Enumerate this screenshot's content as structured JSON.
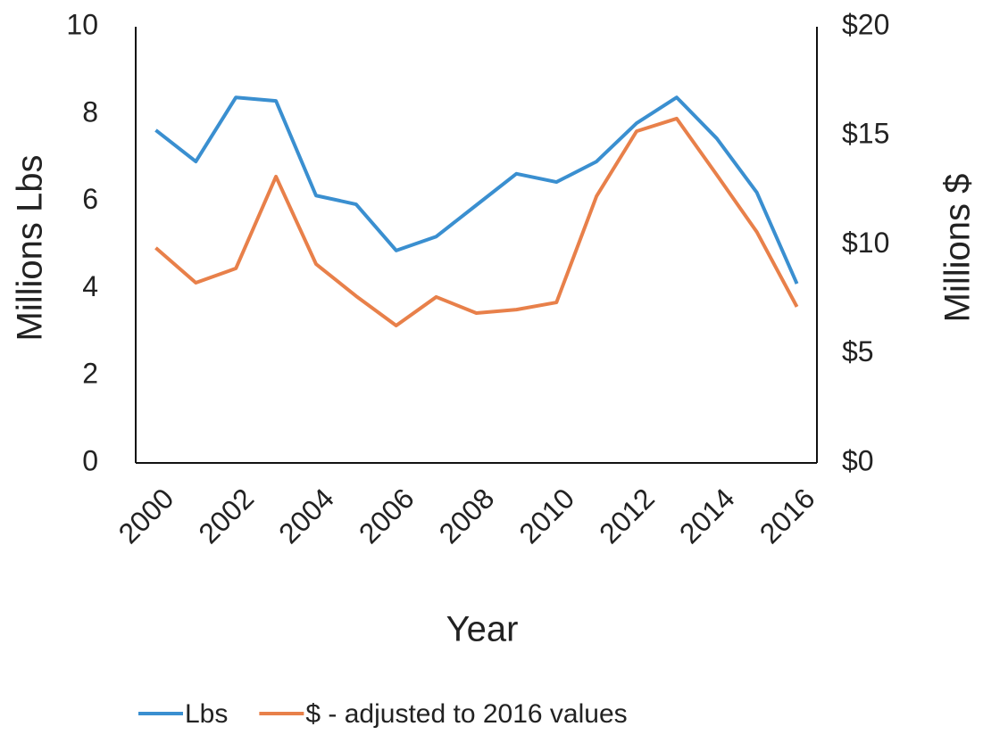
{
  "chart_data": {
    "type": "line",
    "x": [
      2000,
      2001,
      2002,
      2003,
      2004,
      2005,
      2006,
      2007,
      2008,
      2009,
      2010,
      2011,
      2012,
      2013,
      2014,
      2015,
      2016
    ],
    "series": [
      {
        "name": "Lbs",
        "color": "#3a8fd0",
        "values": [
          7.63,
          6.91,
          8.38,
          8.3,
          6.13,
          5.93,
          4.87,
          5.19,
          5.91,
          6.63,
          6.44,
          6.91,
          7.79,
          8.38,
          7.44,
          6.2,
          4.11
        ]
      },
      {
        "name": "$ - adjusted to 2016 values",
        "color": "#e8804a",
        "axis": "y2",
        "values": [
          9.86,
          8.26,
          8.92,
          13.13,
          9.12,
          7.65,
          6.3,
          7.61,
          6.87,
          7.03,
          7.36,
          12.23,
          15.21,
          15.79,
          13.21,
          10.59,
          7.16
        ]
      }
    ],
    "xlabel": "Year",
    "ylabel": "Millions Lbs",
    "y2label": "Millions $",
    "xlim": [
      1999.5,
      2016.5
    ],
    "xticks": [
      2000,
      2002,
      2004,
      2006,
      2008,
      2010,
      2012,
      2014,
      2016
    ],
    "ylim": [
      0,
      10
    ],
    "yticks": [
      0,
      2,
      4,
      6,
      8,
      10
    ],
    "y2lim": [
      0,
      20
    ],
    "y2ticks": [
      {
        "value": 0,
        "label": "$0"
      },
      {
        "value": 5,
        "label": "$5"
      },
      {
        "value": 10,
        "label": "$10"
      },
      {
        "value": 15,
        "label": "$15"
      },
      {
        "value": 20,
        "label": "$20"
      }
    ],
    "grid": false,
    "legend": "bottom"
  }
}
